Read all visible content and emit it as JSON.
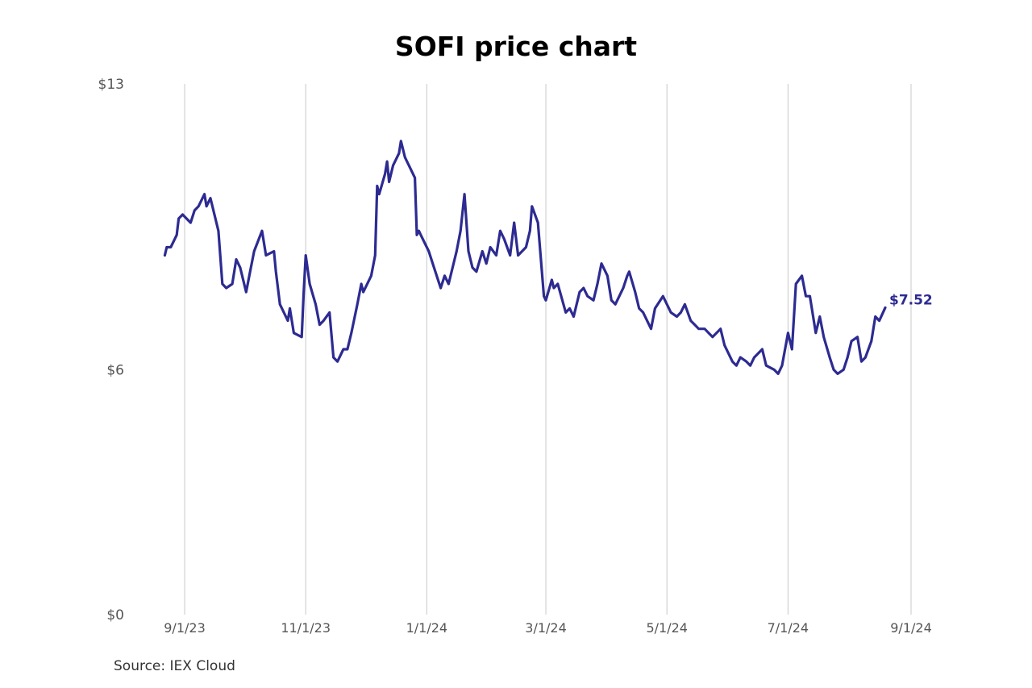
{
  "chart_data": {
    "type": "line",
    "title": "SOFI price chart",
    "source": "Source: IEX Cloud",
    "xlabel": "",
    "ylabel": "",
    "y_ticks": [
      {
        "value": 0,
        "label": "$0"
      },
      {
        "value": 6,
        "label": "$6"
      },
      {
        "value": 13,
        "label": "$13"
      }
    ],
    "x_ticks": [
      {
        "value": "2023-09-01",
        "label": "9/1/23"
      },
      {
        "value": "2023-11-01",
        "label": "11/1/23"
      },
      {
        "value": "2024-01-01",
        "label": "1/1/24"
      },
      {
        "value": "2024-03-01",
        "label": "3/1/24"
      },
      {
        "value": "2024-05-01",
        "label": "5/1/24"
      },
      {
        "value": "2024-07-01",
        "label": "7/1/24"
      },
      {
        "value": "2024-09-01",
        "label": "9/1/24"
      }
    ],
    "xlim": [
      "2023-08-19",
      "2024-09-01"
    ],
    "ylim": [
      0,
      13
    ],
    "grid": "vertical",
    "line_color": "#2d2b91",
    "end_label": "$7.52",
    "series": [
      {
        "values": [
          [
            "2023-08-22",
            8.8
          ],
          [
            "2023-08-23",
            9.0
          ],
          [
            "2023-08-25",
            9.0
          ],
          [
            "2023-08-28",
            9.3
          ],
          [
            "2023-08-29",
            9.7
          ],
          [
            "2023-08-31",
            9.8
          ],
          [
            "2023-09-04",
            9.6
          ],
          [
            "2023-09-06",
            9.9
          ],
          [
            "2023-09-08",
            10.0
          ],
          [
            "2023-09-11",
            10.3
          ],
          [
            "2023-09-12",
            10.0
          ],
          [
            "2023-09-14",
            10.2
          ],
          [
            "2023-09-18",
            9.4
          ],
          [
            "2023-09-20",
            8.1
          ],
          [
            "2023-09-22",
            8.0
          ],
          [
            "2023-09-25",
            8.1
          ],
          [
            "2023-09-27",
            8.7
          ],
          [
            "2023-09-29",
            8.5
          ],
          [
            "2023-10-02",
            7.9
          ],
          [
            "2023-10-04",
            8.4
          ],
          [
            "2023-10-06",
            8.9
          ],
          [
            "2023-10-10",
            9.4
          ],
          [
            "2023-10-12",
            8.8
          ],
          [
            "2023-10-16",
            8.9
          ],
          [
            "2023-10-17",
            8.4
          ],
          [
            "2023-10-19",
            7.6
          ],
          [
            "2023-10-23",
            7.2
          ],
          [
            "2023-10-24",
            7.5
          ],
          [
            "2023-10-26",
            6.9
          ],
          [
            "2023-10-30",
            6.8
          ],
          [
            "2023-10-31",
            7.9
          ],
          [
            "2023-11-01",
            8.8
          ],
          [
            "2023-11-03",
            8.1
          ],
          [
            "2023-11-06",
            7.6
          ],
          [
            "2023-11-08",
            7.1
          ],
          [
            "2023-11-10",
            7.2
          ],
          [
            "2023-11-13",
            7.4
          ],
          [
            "2023-11-15",
            6.3
          ],
          [
            "2023-11-17",
            6.2
          ],
          [
            "2023-11-20",
            6.5
          ],
          [
            "2023-11-22",
            6.5
          ],
          [
            "2023-11-24",
            6.9
          ],
          [
            "2023-11-27",
            7.6
          ],
          [
            "2023-11-29",
            8.1
          ],
          [
            "2023-11-30",
            7.9
          ],
          [
            "2023-12-04",
            8.3
          ],
          [
            "2023-12-06",
            8.8
          ],
          [
            "2023-12-07",
            10.5
          ],
          [
            "2023-12-08",
            10.3
          ],
          [
            "2023-12-11",
            10.8
          ],
          [
            "2023-12-12",
            11.1
          ],
          [
            "2023-12-13",
            10.6
          ],
          [
            "2023-12-15",
            11.0
          ],
          [
            "2023-12-18",
            11.3
          ],
          [
            "2023-12-19",
            11.6
          ],
          [
            "2023-12-21",
            11.2
          ],
          [
            "2023-12-26",
            10.7
          ],
          [
            "2023-12-27",
            9.3
          ],
          [
            "2023-12-28",
            9.4
          ],
          [
            "2023-12-29",
            9.3
          ],
          [
            "2024-01-02",
            8.9
          ],
          [
            "2024-01-04",
            8.6
          ],
          [
            "2024-01-08",
            8.0
          ],
          [
            "2024-01-10",
            8.3
          ],
          [
            "2024-01-12",
            8.1
          ],
          [
            "2024-01-16",
            8.9
          ],
          [
            "2024-01-18",
            9.4
          ],
          [
            "2024-01-20",
            10.3
          ],
          [
            "2024-01-22",
            8.9
          ],
          [
            "2024-01-24",
            8.5
          ],
          [
            "2024-01-26",
            8.4
          ],
          [
            "2024-01-29",
            8.9
          ],
          [
            "2024-01-31",
            8.6
          ],
          [
            "2024-02-02",
            9.0
          ],
          [
            "2024-02-05",
            8.8
          ],
          [
            "2024-02-07",
            9.4
          ],
          [
            "2024-02-09",
            9.2
          ],
          [
            "2024-02-12",
            8.8
          ],
          [
            "2024-02-14",
            9.6
          ],
          [
            "2024-02-16",
            8.8
          ],
          [
            "2024-02-20",
            9.0
          ],
          [
            "2024-02-22",
            9.4
          ],
          [
            "2024-02-23",
            10.0
          ],
          [
            "2024-02-26",
            9.6
          ],
          [
            "2024-02-29",
            7.8
          ],
          [
            "2024-03-01",
            7.7
          ],
          [
            "2024-03-04",
            8.2
          ],
          [
            "2024-03-05",
            8.0
          ],
          [
            "2024-03-07",
            8.1
          ],
          [
            "2024-03-11",
            7.4
          ],
          [
            "2024-03-13",
            7.5
          ],
          [
            "2024-03-15",
            7.3
          ],
          [
            "2024-03-18",
            7.9
          ],
          [
            "2024-03-20",
            8.0
          ],
          [
            "2024-03-22",
            7.8
          ],
          [
            "2024-03-25",
            7.7
          ],
          [
            "2024-03-27",
            8.1
          ],
          [
            "2024-03-29",
            8.6
          ],
          [
            "2024-04-01",
            8.3
          ],
          [
            "2024-04-03",
            7.7
          ],
          [
            "2024-04-05",
            7.6
          ],
          [
            "2024-04-09",
            8.0
          ],
          [
            "2024-04-11",
            8.3
          ],
          [
            "2024-04-12",
            8.4
          ],
          [
            "2024-04-15",
            7.9
          ],
          [
            "2024-04-17",
            7.5
          ],
          [
            "2024-04-19",
            7.4
          ],
          [
            "2024-04-23",
            7.0
          ],
          [
            "2024-04-25",
            7.5
          ],
          [
            "2024-04-29",
            7.8
          ],
          [
            "2024-05-01",
            7.6
          ],
          [
            "2024-05-03",
            7.4
          ],
          [
            "2024-05-06",
            7.3
          ],
          [
            "2024-05-08",
            7.4
          ],
          [
            "2024-05-10",
            7.6
          ],
          [
            "2024-05-13",
            7.2
          ],
          [
            "2024-05-15",
            7.1
          ],
          [
            "2024-05-17",
            7.0
          ],
          [
            "2024-05-20",
            7.0
          ],
          [
            "2024-05-22",
            6.9
          ],
          [
            "2024-05-24",
            6.8
          ],
          [
            "2024-05-28",
            7.0
          ],
          [
            "2024-05-30",
            6.6
          ],
          [
            "2024-06-03",
            6.2
          ],
          [
            "2024-06-05",
            6.1
          ],
          [
            "2024-06-07",
            6.3
          ],
          [
            "2024-06-10",
            6.2
          ],
          [
            "2024-06-12",
            6.1
          ],
          [
            "2024-06-14",
            6.3
          ],
          [
            "2024-06-18",
            6.5
          ],
          [
            "2024-06-20",
            6.1
          ],
          [
            "2024-06-24",
            6.0
          ],
          [
            "2024-06-26",
            5.9
          ],
          [
            "2024-06-28",
            6.1
          ],
          [
            "2024-07-01",
            6.9
          ],
          [
            "2024-07-03",
            6.5
          ],
          [
            "2024-07-05",
            8.1
          ],
          [
            "2024-07-08",
            8.3
          ],
          [
            "2024-07-10",
            7.8
          ],
          [
            "2024-07-12",
            7.8
          ],
          [
            "2024-07-15",
            6.9
          ],
          [
            "2024-07-17",
            7.3
          ],
          [
            "2024-07-19",
            6.8
          ],
          [
            "2024-07-22",
            6.3
          ],
          [
            "2024-07-24",
            6.0
          ],
          [
            "2024-07-26",
            5.9
          ],
          [
            "2024-07-29",
            6.0
          ],
          [
            "2024-07-31",
            6.3
          ],
          [
            "2024-08-02",
            6.7
          ],
          [
            "2024-08-05",
            6.8
          ],
          [
            "2024-08-07",
            6.2
          ],
          [
            "2024-08-09",
            6.3
          ],
          [
            "2024-08-12",
            6.7
          ],
          [
            "2024-08-14",
            7.3
          ],
          [
            "2024-08-16",
            7.2
          ],
          [
            "2024-08-19",
            7.52
          ]
        ]
      }
    ]
  }
}
